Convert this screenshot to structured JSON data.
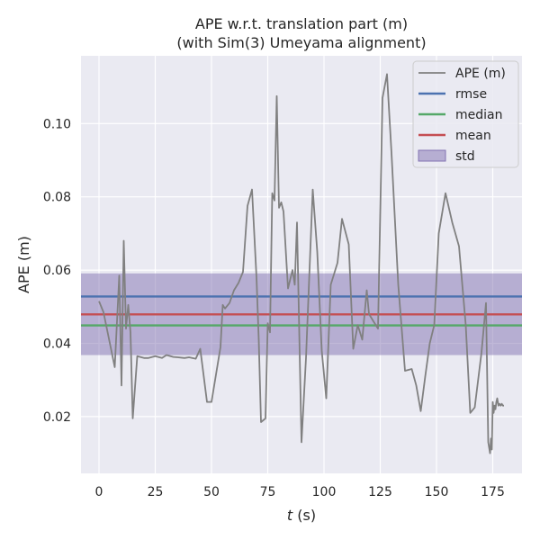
{
  "chart_data": {
    "type": "line",
    "title": "APE w.r.t. translation part (m)",
    "subtitle": "(with Sim(3) Umeyama alignment)",
    "xlabel_var": "t",
    "xlabel_unit": " (s)",
    "ylabel": "APE (m)",
    "xlim": [
      -8,
      188
    ],
    "ylim": [
      0.0045,
      0.1185
    ],
    "xticks": [
      0,
      25,
      50,
      75,
      100,
      125,
      150,
      175
    ],
    "yticks": [
      0.02,
      0.04,
      0.06,
      0.08,
      0.1
    ],
    "ytick_labels": [
      "0.02",
      "0.04",
      "0.06",
      "0.08",
      "0.10"
    ],
    "grid": true,
    "legend_position": "top-right",
    "colors": {
      "background": "#eaeaf2",
      "grid": "#ffffff",
      "ape": "#808080",
      "rmse": "#4c72b0",
      "median": "#55a868",
      "mean": "#c44e52",
      "std": "#8172b2"
    },
    "stats": {
      "rmse": 0.0528,
      "median": 0.0449,
      "mean": 0.0479,
      "std_low": 0.0368,
      "std_high": 0.0591
    },
    "legend": [
      {
        "key": "ape",
        "label": "APE (m)",
        "kind": "line"
      },
      {
        "key": "rmse",
        "label": "rmse",
        "kind": "line"
      },
      {
        "key": "median",
        "label": "median",
        "kind": "line"
      },
      {
        "key": "mean",
        "label": "mean",
        "kind": "line"
      },
      {
        "key": "std",
        "label": "std",
        "kind": "patch"
      }
    ],
    "series": [
      {
        "name": "APE (m)",
        "x": [
          0,
          2,
          5,
          7,
          9,
          10,
          11,
          12,
          13,
          14,
          15,
          17,
          20,
          22,
          25,
          28,
          30,
          33,
          35,
          38,
          40,
          43,
          45,
          48,
          50,
          52,
          54,
          55,
          56,
          58,
          60,
          62,
          64,
          66,
          68,
          70,
          71,
          72,
          74,
          75,
          76,
          77,
          78,
          79,
          80,
          81,
          82,
          84,
          86,
          87,
          88,
          90,
          92,
          95,
          97,
          99,
          101,
          103,
          106,
          108,
          111,
          113,
          115,
          117,
          119,
          120,
          122,
          124,
          126,
          128,
          130,
          133,
          136,
          139,
          141,
          143,
          145,
          147,
          149,
          151,
          154,
          157,
          160,
          163,
          165,
          167,
          170,
          172,
          173,
          173.8,
          174.2,
          174.6,
          175,
          175.4,
          175.8,
          176.2,
          176.6,
          177,
          177.5,
          178,
          178.5,
          179,
          179.5,
          180
        ],
        "values": [
          0.0515,
          0.0485,
          0.0395,
          0.0335,
          0.0585,
          0.0285,
          0.068,
          0.044,
          0.0505,
          0.043,
          0.0195,
          0.0365,
          0.036,
          0.036,
          0.0365,
          0.036,
          0.0368,
          0.0363,
          0.0362,
          0.036,
          0.0362,
          0.0358,
          0.0385,
          0.024,
          0.024,
          0.0315,
          0.039,
          0.0505,
          0.0495,
          0.051,
          0.0545,
          0.0565,
          0.0595,
          0.0775,
          0.082,
          0.058,
          0.041,
          0.0185,
          0.0195,
          0.0455,
          0.043,
          0.081,
          0.079,
          0.1075,
          0.077,
          0.0785,
          0.076,
          0.055,
          0.06,
          0.056,
          0.073,
          0.013,
          0.036,
          0.082,
          0.065,
          0.038,
          0.025,
          0.056,
          0.062,
          0.074,
          0.067,
          0.0385,
          0.045,
          0.041,
          0.0545,
          0.048,
          0.046,
          0.044,
          0.107,
          0.1135,
          0.092,
          0.056,
          0.0325,
          0.033,
          0.0285,
          0.0215,
          0.031,
          0.04,
          0.045,
          0.07,
          0.081,
          0.073,
          0.0665,
          0.045,
          0.021,
          0.0225,
          0.0375,
          0.051,
          0.013,
          0.01,
          0.014,
          0.011,
          0.024,
          0.021,
          0.023,
          0.022,
          0.024,
          0.025,
          0.023,
          0.0235,
          0.023,
          0.0235,
          0.023,
          0.023
        ]
      }
    ]
  }
}
